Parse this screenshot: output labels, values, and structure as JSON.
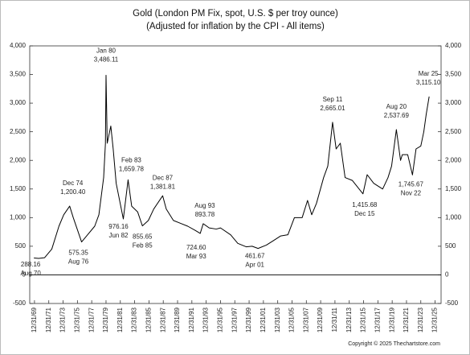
{
  "chart_data": {
    "type": "line",
    "title": "Gold (London PM Fix, spot, U.S. $ per troy ounce)",
    "subtitle": "(Adjusted for inflation by the CPI - All items)",
    "footnote": "Copyright © 2025 Thechartstore.com",
    "color": "#000000",
    "grid": false,
    "xlim": [
      "1969-05",
      "2026-11"
    ],
    "ylim": [
      -500,
      4000
    ],
    "yticks": [
      {
        "value": 4000,
        "label": "4,000"
      },
      {
        "value": 3500,
        "label": "3,500"
      },
      {
        "value": 3000,
        "label": "3,000"
      },
      {
        "value": 2500,
        "label": "2,500"
      },
      {
        "value": 2000,
        "label": "2,000"
      },
      {
        "value": 1500,
        "label": "1,500"
      },
      {
        "value": 1000,
        "label": "1,000"
      },
      500,
      0,
      -500
    ],
    "xticks": [
      {
        "value": "1969-12-31",
        "label": "12/31/69"
      },
      {
        "value": "1971-12-31",
        "label": "12/31/71"
      },
      {
        "value": "1973-12-31",
        "label": "12/31/73"
      },
      {
        "value": "1975-12-31",
        "label": "12/31/75"
      },
      {
        "value": "1977-12-31",
        "label": "12/31/77"
      },
      {
        "value": "1979-12-31",
        "label": "12/31/79"
      },
      {
        "value": "1981-12-31",
        "label": "12/31/81"
      },
      {
        "value": "1983-12-31",
        "label": "12/31/83"
      },
      {
        "value": "1985-12-31",
        "label": "12/31/85"
      },
      {
        "value": "1987-12-31",
        "label": "12/31/87"
      },
      {
        "value": "1989-12-31",
        "label": "12/31/89"
      },
      {
        "value": "1991-12-31",
        "label": "12/31/91"
      },
      {
        "value": "1993-12-31",
        "label": "12/31/93"
      },
      {
        "value": "1995-12-31",
        "label": "12/31/95"
      },
      {
        "value": "1997-12-31",
        "label": "12/31/97"
      },
      {
        "value": "1999-12-31",
        "label": "12/31/99"
      },
      {
        "value": "2001-12-31",
        "label": "12/31/01"
      },
      {
        "value": "2003-12-31",
        "label": "12/31/03"
      },
      {
        "value": "2005-12-31",
        "label": "12/31/05"
      },
      {
        "value": "2007-12-31",
        "label": "12/31/07"
      },
      {
        "value": "2009-12-31",
        "label": "12/31/09"
      },
      {
        "value": "2011-12-31",
        "label": "12/31/11"
      },
      {
        "value": "2013-12-31",
        "label": "12/31/13"
      },
      {
        "value": "2015-12-31",
        "label": "12/31/15"
      },
      {
        "value": "2017-12-31",
        "label": "12/31/17"
      },
      {
        "value": "2019-12-31",
        "label": "12/31/19"
      },
      {
        "value": "2021-12-31",
        "label": "12/31/21"
      },
      {
        "value": "2023-12-31",
        "label": "12/31/23"
      },
      {
        "value": "2025-12-31",
        "label": "12/31/25"
      }
    ],
    "x": [
      "1969-12",
      "1970-08",
      "1971-06",
      "1972-06",
      "1973-06",
      "1974-02",
      "1974-12",
      "1975-06",
      "1976-08",
      "1977-06",
      "1978-06",
      "1979-01",
      "1979-09",
      "1979-12",
      "1980-01",
      "1980-03",
      "1980-09",
      "1981-01",
      "1981-06",
      "1982-06",
      "1983-02",
      "1983-08",
      "1984-06",
      "1985-02",
      "1985-12",
      "1986-09",
      "1987-12",
      "1988-06",
      "1989-06",
      "1990-06",
      "1991-06",
      "1992-06",
      "1993-03",
      "1993-08",
      "1994-06",
      "1995-06",
      "1996-01",
      "1997-06",
      "1998-06",
      "1999-08",
      "2000-06",
      "2001-04",
      "2002-06",
      "2003-06",
      "2004-06",
      "2005-06",
      "2006-05",
      "2007-06",
      "2008-03",
      "2008-10",
      "2009-06",
      "2010-06",
      "2011-01",
      "2011-09",
      "2012-03",
      "2012-10",
      "2013-06",
      "2014-06",
      "2015-12",
      "2016-07",
      "2017-06",
      "2018-09",
      "2019-06",
      "2019-12",
      "2020-08",
      "2021-03",
      "2021-06",
      "2022-03",
      "2022-11",
      "2023-05",
      "2024-01",
      "2024-06",
      "2024-10",
      "2025-03"
    ],
    "series": [
      {
        "name": "Gold",
        "color": "#000000",
        "values": [
          295,
          288.16,
          300,
          450,
          850,
          1050,
          1200.4,
          1000,
          575.35,
          700,
          850,
          1050,
          1700,
          2300,
          3486.11,
          2300,
          2600,
          2200,
          1600,
          976.16,
          1659.78,
          1200,
          1100,
          855.65,
          950,
          1150,
          1381.81,
          1150,
          950,
          900,
          850,
          780,
          724.6,
          893.78,
          820,
          800,
          820,
          700,
          550,
          490,
          500,
          461.67,
          520,
          600,
          680,
          700,
          1000,
          1000,
          1300,
          1050,
          1250,
          1700,
          1900,
          2665.01,
          2200,
          2300,
          1700,
          1650,
          1415.68,
          1750,
          1600,
          1500,
          1700,
          1900,
          2537.69,
          2000,
          2100,
          2100,
          1745.67,
          2200,
          2250,
          2500,
          2800,
          3115.1
        ]
      }
    ],
    "annotations": [
      {
        "date_label": "Aug 70",
        "value_label": "288.16",
        "x": "1970-08",
        "value": 288.16
      },
      {
        "date_label": "Dec 74",
        "value_label": "1,200.40",
        "x": "1974-12",
        "value": 1200.4
      },
      {
        "date_label": "Aug 76",
        "value_label": "575.35",
        "x": "1976-08",
        "value": 575.35
      },
      {
        "date_label": "Jan 80",
        "value_label": "3,486.11",
        "x": "1980-01",
        "value": 3486.11
      },
      {
        "date_label": "Jun 82",
        "value_label": "976.16",
        "x": "1982-06",
        "value": 976.16
      },
      {
        "date_label": "Feb 83",
        "value_label": "1,659.78",
        "x": "1983-02",
        "value": 1659.78
      },
      {
        "date_label": "Feb 85",
        "value_label": "855.65",
        "x": "1985-02",
        "value": 855.65
      },
      {
        "date_label": "Dec 87",
        "value_label": "1,381.81",
        "x": "1987-12",
        "value": 1381.81
      },
      {
        "date_label": "Mar 93",
        "value_label": "724.60",
        "x": "1993-03",
        "value": 724.6
      },
      {
        "date_label": "Aug 93",
        "value_label": "893.78",
        "x": "1993-08",
        "value": 893.78
      },
      {
        "date_label": "Apr 01",
        "value_label": "461.67",
        "x": "2001-04",
        "value": 461.67
      },
      {
        "date_label": "Sep 11",
        "value_label": "2,665.01",
        "x": "2011-09",
        "value": 2665.01
      },
      {
        "date_label": "Dec 15",
        "value_label": "1,415.68",
        "x": "2015-12",
        "value": 1415.68
      },
      {
        "date_label": "Aug 20",
        "value_label": "2,537.69",
        "x": "2020-08",
        "value": 2537.69
      },
      {
        "date_label": "Nov 22",
        "value_label": "1,745.67",
        "x": "2022-11",
        "value": 1745.67
      },
      {
        "date_label": "Mar 25",
        "value_label": "3,115.10",
        "x": "2025-03",
        "value": 3115.1
      }
    ]
  }
}
